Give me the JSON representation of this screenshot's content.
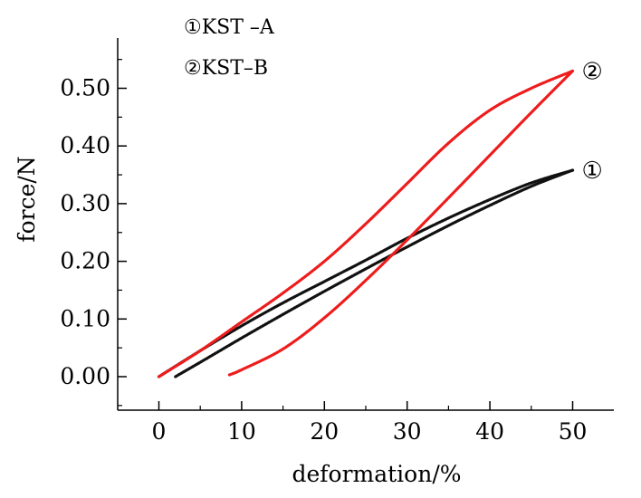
{
  "chart_data": {
    "type": "line",
    "xlabel": "deformation/%",
    "ylabel": "force/N",
    "xlim": [
      -5,
      55
    ],
    "ylim": [
      -0.05,
      0.57
    ],
    "x_ticks": [
      0,
      10,
      20,
      30,
      40,
      50
    ],
    "x_tick_labels": [
      "0",
      "10",
      "20",
      "30",
      "40",
      "50"
    ],
    "y_ticks": [
      0.0,
      0.1,
      0.2,
      0.3,
      0.4,
      0.5
    ],
    "y_tick_labels": [
      "0.00",
      "0.10",
      "0.20",
      "0.30",
      "0.40",
      "0.50"
    ],
    "grid": false,
    "legend": [
      "①KST –A",
      "②KST–B"
    ],
    "legend_position": "top-left",
    "series": [
      {
        "name": "①KST –A",
        "end_label": "①",
        "color": "#111111",
        "loading": {
          "x": [
            0,
            5,
            10,
            15,
            20,
            25,
            30,
            35,
            40,
            45,
            50
          ],
          "y": [
            0.0,
            0.045,
            0.088,
            0.128,
            0.165,
            0.202,
            0.24,
            0.275,
            0.307,
            0.336,
            0.358
          ]
        },
        "unloading": {
          "x": [
            50,
            45,
            40,
            35,
            30,
            25,
            20,
            15,
            10,
            5,
            2
          ],
          "y": [
            0.358,
            0.33,
            0.297,
            0.262,
            0.225,
            0.187,
            0.148,
            0.108,
            0.067,
            0.025,
            0.0
          ]
        }
      },
      {
        "name": "②KST–B",
        "end_label": "②",
        "color": "#ee1c1c",
        "loading": {
          "x": [
            0,
            5,
            10,
            15,
            20,
            25,
            30,
            35,
            40,
            45,
            50
          ],
          "y": [
            0.0,
            0.045,
            0.095,
            0.145,
            0.2,
            0.265,
            0.335,
            0.405,
            0.462,
            0.5,
            0.53
          ]
        },
        "unloading": {
          "x": [
            50,
            45,
            40,
            35,
            30,
            25,
            20,
            15,
            10,
            8.5
          ],
          "y": [
            0.53,
            0.458,
            0.384,
            0.31,
            0.237,
            0.167,
            0.102,
            0.048,
            0.012,
            0.003
          ]
        }
      }
    ]
  }
}
